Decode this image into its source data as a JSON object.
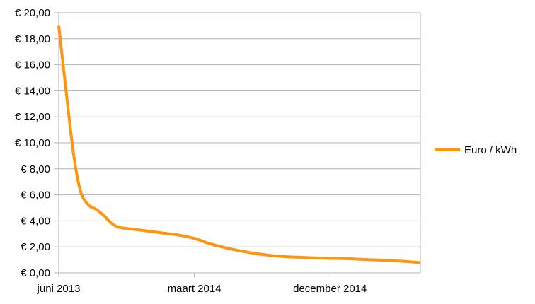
{
  "chart_data": {
    "type": "line",
    "title": "",
    "xlabel": "",
    "ylabel": "",
    "x_tick_labels": [
      "juni 2013",
      "maart 2014",
      "december 2014"
    ],
    "x_tick_dates": [
      "2013-06",
      "2014-03",
      "2014-12"
    ],
    "x_range": [
      "2013-06",
      "2015-06"
    ],
    "y_tick_labels": [
      "€ 0,00",
      "€ 2,00",
      "€ 4,00",
      "€ 6,00",
      "€ 8,00",
      "€ 10,00",
      "€ 12,00",
      "€ 14,00",
      "€ 16,00",
      "€ 18,00",
      "€ 20,00"
    ],
    "ylim": [
      0,
      20
    ],
    "grid": "horizontal",
    "legend_position": "right",
    "series": [
      {
        "name": "Euro / kWh",
        "color": "#ff950e",
        "points": [
          {
            "x": "2013-06-01",
            "y": 19.0
          },
          {
            "x": "2013-06-15",
            "y": 14.2
          },
          {
            "x": "2013-07-01",
            "y": 9.0
          },
          {
            "x": "2013-07-15",
            "y": 6.2
          },
          {
            "x": "2013-08-01",
            "y": 5.2
          },
          {
            "x": "2013-08-15",
            "y": 4.9
          },
          {
            "x": "2013-09-01",
            "y": 4.4
          },
          {
            "x": "2013-09-15",
            "y": 3.85
          },
          {
            "x": "2013-10-01",
            "y": 3.5
          },
          {
            "x": "2013-11-01",
            "y": 3.35
          },
          {
            "x": "2013-12-01",
            "y": 3.2
          },
          {
            "x": "2014-01-01",
            "y": 3.05
          },
          {
            "x": "2014-02-01",
            "y": 2.9
          },
          {
            "x": "2014-03-01",
            "y": 2.65
          },
          {
            "x": "2014-04-01",
            "y": 2.25
          },
          {
            "x": "2014-05-01",
            "y": 1.95
          },
          {
            "x": "2014-06-01",
            "y": 1.7
          },
          {
            "x": "2014-07-01",
            "y": 1.5
          },
          {
            "x": "2014-08-01",
            "y": 1.35
          },
          {
            "x": "2014-09-01",
            "y": 1.25
          },
          {
            "x": "2014-10-01",
            "y": 1.2
          },
          {
            "x": "2014-11-01",
            "y": 1.15
          },
          {
            "x": "2014-12-01",
            "y": 1.12
          },
          {
            "x": "2015-01-01",
            "y": 1.1
          },
          {
            "x": "2015-02-01",
            "y": 1.05
          },
          {
            "x": "2015-03-01",
            "y": 1.0
          },
          {
            "x": "2015-04-01",
            "y": 0.95
          },
          {
            "x": "2015-05-01",
            "y": 0.88
          },
          {
            "x": "2015-06-01",
            "y": 0.78
          }
        ]
      }
    ]
  }
}
